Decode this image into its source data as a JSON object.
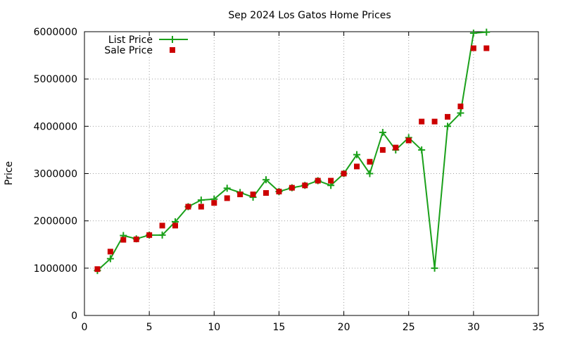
{
  "chart_data": {
    "type": "line",
    "title": "Sep 2024 Los Gatos Home Prices",
    "xlabel": "",
    "ylabel": "Price",
    "xlim": [
      0,
      35
    ],
    "ylim": [
      0,
      6000000
    ],
    "xticks": [
      0,
      5,
      10,
      15,
      20,
      25,
      30,
      35
    ],
    "yticks": [
      0,
      1000000,
      2000000,
      3000000,
      4000000,
      5000000,
      6000000
    ],
    "xtick_labels": [
      "0",
      "5",
      "10",
      "15",
      "20",
      "25",
      "30",
      "35"
    ],
    "ytick_labels": [
      "0",
      "1000000",
      "2000000",
      "3000000",
      "4000000",
      "5000000",
      "6000000"
    ],
    "grid": true,
    "legend_position": "top-left",
    "series": [
      {
        "name": "List Price",
        "style": "line-with-plus-markers",
        "color": "#1aa01a",
        "points": [
          [
            1,
            950000
          ],
          [
            2,
            1200000
          ],
          [
            3,
            1690000
          ],
          [
            4,
            1620000
          ],
          [
            5,
            1700000
          ],
          [
            6,
            1700000
          ],
          [
            7,
            1980000
          ],
          [
            8,
            2300000
          ],
          [
            9,
            2440000
          ],
          [
            10,
            2460000
          ],
          [
            11,
            2690000
          ],
          [
            12,
            2600000
          ],
          [
            13,
            2500000
          ],
          [
            14,
            2870000
          ],
          [
            15,
            2620000
          ],
          [
            16,
            2700000
          ],
          [
            17,
            2750000
          ],
          [
            18,
            2850000
          ],
          [
            19,
            2750000
          ],
          [
            20,
            3000000
          ],
          [
            21,
            3400000
          ],
          [
            22,
            3000000
          ],
          [
            23,
            3870000
          ],
          [
            24,
            3500000
          ],
          [
            25,
            3760000
          ],
          [
            26,
            3500000
          ],
          [
            27,
            1000000
          ],
          [
            28,
            4000000
          ],
          [
            29,
            4280000
          ],
          [
            30,
            5970000
          ],
          [
            31,
            5990000
          ]
        ]
      },
      {
        "name": "Sale Price",
        "style": "square-markers",
        "color": "#cc0000",
        "points": [
          [
            1,
            980000
          ],
          [
            2,
            1350000
          ],
          [
            3,
            1600000
          ],
          [
            4,
            1610000
          ],
          [
            5,
            1700000
          ],
          [
            6,
            1900000
          ],
          [
            7,
            1900000
          ],
          [
            8,
            2300000
          ],
          [
            9,
            2300000
          ],
          [
            10,
            2380000
          ],
          [
            11,
            2480000
          ],
          [
            12,
            2560000
          ],
          [
            13,
            2560000
          ],
          [
            14,
            2590000
          ],
          [
            15,
            2620000
          ],
          [
            16,
            2700000
          ],
          [
            17,
            2750000
          ],
          [
            18,
            2850000
          ],
          [
            19,
            2850000
          ],
          [
            20,
            3000000
          ],
          [
            21,
            3150000
          ],
          [
            22,
            3250000
          ],
          [
            23,
            3500000
          ],
          [
            24,
            3550000
          ],
          [
            25,
            3700000
          ],
          [
            26,
            4100000
          ],
          [
            27,
            4100000
          ],
          [
            28,
            4200000
          ],
          [
            29,
            4420000
          ],
          [
            30,
            5650000
          ],
          [
            31,
            5650000
          ]
        ]
      }
    ]
  }
}
